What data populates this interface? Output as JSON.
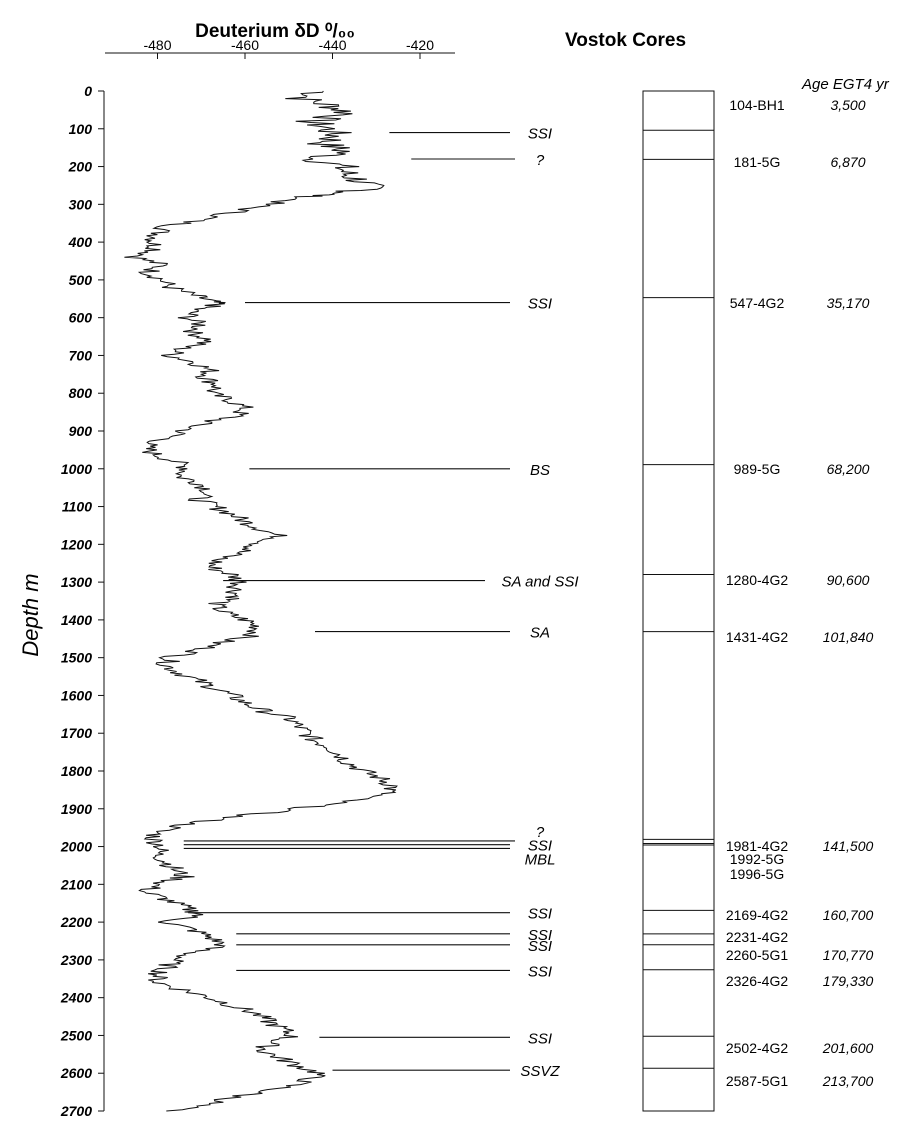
{
  "chart_data": {
    "type": "line",
    "title": "Deuterium δD ⁰/₀₀",
    "xlabel": "Deuterium δD ⁰/₀₀",
    "ylabel": "Depth m",
    "xlim": [
      -492,
      -412
    ],
    "ylim": [
      0,
      2700
    ],
    "x_ticks": [
      -480,
      -460,
      -440,
      -420
    ],
    "y_ticks": [
      0,
      100,
      200,
      300,
      400,
      500,
      600,
      700,
      800,
      900,
      1000,
      1100,
      1200,
      1300,
      1400,
      1500,
      1600,
      1700,
      1800,
      1900,
      2000,
      2100,
      2200,
      2300,
      2400,
      2500,
      2600,
      2700
    ],
    "grid": false,
    "series": [
      {
        "points": [
          [
            0,
            -442
          ],
          [
            20,
            -447
          ],
          [
            40,
            -440
          ],
          [
            60,
            -436
          ],
          [
            80,
            -445
          ],
          [
            100,
            -441
          ],
          [
            120,
            -439
          ],
          [
            140,
            -442
          ],
          [
            160,
            -437
          ],
          [
            180,
            -444
          ],
          [
            200,
            -438
          ],
          [
            220,
            -437
          ],
          [
            240,
            -433
          ],
          [
            260,
            -432
          ],
          [
            270,
            -438
          ],
          [
            280,
            -446
          ],
          [
            300,
            -455
          ],
          [
            320,
            -462
          ],
          [
            340,
            -470
          ],
          [
            360,
            -478
          ],
          [
            380,
            -480
          ],
          [
            400,
            -481
          ],
          [
            420,
            -480
          ],
          [
            440,
            -485
          ],
          [
            460,
            -479
          ],
          [
            480,
            -482
          ],
          [
            500,
            -479
          ],
          [
            520,
            -477
          ],
          [
            540,
            -472
          ],
          [
            555,
            -468
          ],
          [
            565,
            -466
          ],
          [
            580,
            -472
          ],
          [
            600,
            -473
          ],
          [
            620,
            -470
          ],
          [
            640,
            -472
          ],
          [
            660,
            -468
          ],
          [
            680,
            -474
          ],
          [
            700,
            -477
          ],
          [
            720,
            -471
          ],
          [
            740,
            -468
          ],
          [
            760,
            -469
          ],
          [
            780,
            -466
          ],
          [
            800,
            -468
          ],
          [
            820,
            -463
          ],
          [
            840,
            -460
          ],
          [
            860,
            -462
          ],
          [
            880,
            -470
          ],
          [
            900,
            -474
          ],
          [
            920,
            -478
          ],
          [
            940,
            -483
          ],
          [
            960,
            -481
          ],
          [
            980,
            -476
          ],
          [
            1000,
            -473
          ],
          [
            1020,
            -475
          ],
          [
            1040,
            -470
          ],
          [
            1060,
            -468
          ],
          [
            1080,
            -471
          ],
          [
            1100,
            -467
          ],
          [
            1120,
            -463
          ],
          [
            1140,
            -460
          ],
          [
            1160,
            -456
          ],
          [
            1180,
            -452
          ],
          [
            1200,
            -457
          ],
          [
            1220,
            -461
          ],
          [
            1240,
            -466
          ],
          [
            1260,
            -468
          ],
          [
            1280,
            -463
          ],
          [
            1300,
            -461
          ],
          [
            1320,
            -462
          ],
          [
            1340,
            -462
          ],
          [
            1360,
            -467
          ],
          [
            1380,
            -465
          ],
          [
            1400,
            -460
          ],
          [
            1420,
            -457
          ],
          [
            1440,
            -458
          ],
          [
            1460,
            -466
          ],
          [
            1480,
            -470
          ],
          [
            1500,
            -477
          ],
          [
            1520,
            -478
          ],
          [
            1540,
            -475
          ],
          [
            1560,
            -471
          ],
          [
            1580,
            -467
          ],
          [
            1600,
            -463
          ],
          [
            1620,
            -460
          ],
          [
            1640,
            -456
          ],
          [
            1660,
            -450
          ],
          [
            1680,
            -448
          ],
          [
            1700,
            -446
          ],
          [
            1720,
            -444
          ],
          [
            1740,
            -440
          ],
          [
            1760,
            -438
          ],
          [
            1780,
            -436
          ],
          [
            1800,
            -433
          ],
          [
            1820,
            -429
          ],
          [
            1840,
            -426
          ],
          [
            1860,
            -428
          ],
          [
            1880,
            -437
          ],
          [
            1900,
            -448
          ],
          [
            1920,
            -462
          ],
          [
            1940,
            -473
          ],
          [
            1960,
            -480
          ],
          [
            1980,
            -481
          ],
          [
            2000,
            -479
          ],
          [
            2020,
            -480
          ],
          [
            2040,
            -478
          ],
          [
            2060,
            -476
          ],
          [
            2080,
            -474
          ],
          [
            2100,
            -480
          ],
          [
            2120,
            -483
          ],
          [
            2140,
            -478
          ],
          [
            2160,
            -474
          ],
          [
            2180,
            -470
          ],
          [
            2200,
            -478
          ],
          [
            2220,
            -472
          ],
          [
            2240,
            -468
          ],
          [
            2260,
            -465
          ],
          [
            2280,
            -472
          ],
          [
            2300,
            -476
          ],
          [
            2320,
            -478
          ],
          [
            2340,
            -480
          ],
          [
            2360,
            -480
          ],
          [
            2380,
            -474
          ],
          [
            2400,
            -468
          ],
          [
            2420,
            -463
          ],
          [
            2440,
            -458
          ],
          [
            2460,
            -455
          ],
          [
            2480,
            -452
          ],
          [
            2500,
            -449
          ],
          [
            2520,
            -454
          ],
          [
            2540,
            -456
          ],
          [
            2560,
            -452
          ],
          [
            2580,
            -448
          ],
          [
            2600,
            -443
          ],
          [
            2620,
            -446
          ],
          [
            2640,
            -452
          ],
          [
            2660,
            -461
          ],
          [
            2680,
            -468
          ],
          [
            2700,
            -478
          ]
        ]
      }
    ],
    "annotations": [
      {
        "label": "SSI",
        "depth": 110,
        "from_x": -427
      },
      {
        "label": "?",
        "depth": 180,
        "from_x": -422
      },
      {
        "label": "SSI",
        "depth": 560,
        "from_x": -460
      },
      {
        "label": "BS",
        "depth": 1000,
        "from_x": -459
      },
      {
        "label": "SA and SSI",
        "depth": 1296,
        "from_x": -465
      },
      {
        "label": "SA",
        "depth": 1431,
        "from_x": -444
      },
      {
        "label": "?",
        "depth": 1985,
        "from_x": -474
      },
      {
        "label": "SSI",
        "depth": 1995,
        "from_x": -474
      },
      {
        "label": "MBL",
        "depth": 2005,
        "from_x": -474
      },
      {
        "label": "SSI",
        "depth": 2175,
        "from_x": -473
      },
      {
        "label": "SSI",
        "depth": 2231,
        "from_x": -462
      },
      {
        "label": "SSI",
        "depth": 2260,
        "from_x": -462
      },
      {
        "label": "SSI",
        "depth": 2328,
        "from_x": -462
      },
      {
        "label": "SSI",
        "depth": 2505,
        "from_x": -443
      },
      {
        "label": "SSVZ",
        "depth": 2592,
        "from_x": -440
      }
    ]
  },
  "cores_panel": {
    "title": "Vostok Cores",
    "age_header": "Age EGT4 yr",
    "cores": [
      {
        "id": "104-BH1",
        "depth": 104,
        "age": "3,500"
      },
      {
        "id": "181-5G",
        "depth": 181,
        "age": "6,870"
      },
      {
        "id": "547-4G2",
        "depth": 547,
        "age": "35,170"
      },
      {
        "id": "989-5G",
        "depth": 989,
        "age": "68,200"
      },
      {
        "id": "1280-4G2",
        "depth": 1280,
        "age": "90,600"
      },
      {
        "id": "1431-4G2",
        "depth": 1431,
        "age": "101,840"
      },
      {
        "id": "1981-4G2",
        "depth": 1981,
        "age": "141,500"
      },
      {
        "id": "1992-5G",
        "depth": 1992,
        "age": ""
      },
      {
        "id": "1996-5G",
        "depth": 1996,
        "age": ""
      },
      {
        "id": "2169-4G2",
        "depth": 2169,
        "age": "160,700"
      },
      {
        "id": "2231-4G2",
        "depth": 2231,
        "age": ""
      },
      {
        "id": "2260-5G1",
        "depth": 2260,
        "age": "170,770"
      },
      {
        "id": "2326-4G2",
        "depth": 2326,
        "age": "179,330"
      },
      {
        "id": "2502-4G2",
        "depth": 2502,
        "age": "201,600"
      },
      {
        "id": "2587-5G1",
        "depth": 2587,
        "age": "213,700"
      }
    ]
  }
}
